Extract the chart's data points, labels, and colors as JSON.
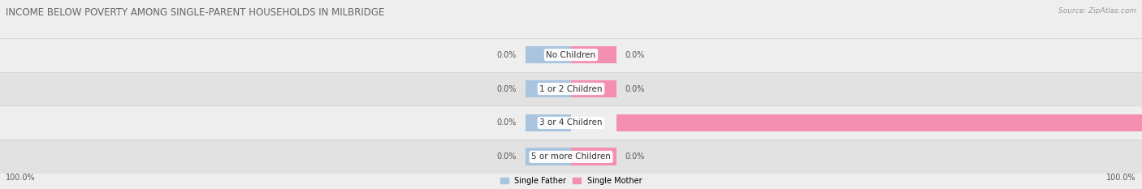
{
  "title": "INCOME BELOW POVERTY AMONG SINGLE-PARENT HOUSEHOLDS IN MILBRIDGE",
  "source": "Source: ZipAtlas.com",
  "categories": [
    "No Children",
    "1 or 2 Children",
    "3 or 4 Children",
    "5 or more Children"
  ],
  "single_father": [
    0.0,
    0.0,
    0.0,
    0.0
  ],
  "single_mother": [
    0.0,
    0.0,
    100.0,
    0.0
  ],
  "father_color": "#a8c4df",
  "mother_color": "#f48fb1",
  "bg_light": "#eeeeee",
  "bg_dark": "#e2e2e2",
  "row_separator": "#d0d0d0",
  "title_color": "#666666",
  "label_color": "#555555",
  "source_color": "#999999",
  "title_fontsize": 8.5,
  "cat_fontsize": 7.5,
  "val_fontsize": 7.0,
  "bar_height": 0.52,
  "stub_size": 8.0,
  "xlim_left": -100,
  "xlim_right": 100,
  "center_label_bg": "#ffffff",
  "bottom_left": "100.0%",
  "bottom_right": "100.0%"
}
